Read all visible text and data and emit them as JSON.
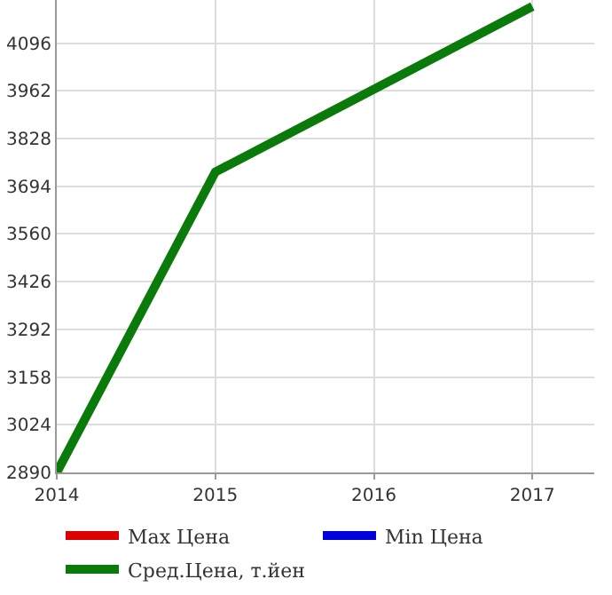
{
  "chart_data": {
    "type": "line",
    "x": [
      2014,
      2015,
      2017
    ],
    "series": [
      {
        "name": "Max Цена",
        "color": "#dd0000",
        "values": [
          null,
          null,
          null
        ]
      },
      {
        "name": "Min Цена",
        "color": "#0000dd",
        "values": [
          null,
          null,
          null
        ]
      },
      {
        "name": "Сред.Цена, т.йен",
        "color": "#0a7a0a",
        "values": [
          2890,
          3734,
          4199
        ]
      }
    ],
    "xlim": [
      2014,
      2017.39
    ],
    "xticks": [
      2014,
      2015,
      2016,
      2017
    ],
    "ylim": [
      2890,
      4217
    ],
    "yticks": [
      2890,
      3024,
      3158,
      3292,
      3426,
      3560,
      3694,
      3828,
      3962,
      4096
    ],
    "grid": true,
    "legend": "bottom",
    "marker": "none",
    "line_style": "solid"
  }
}
